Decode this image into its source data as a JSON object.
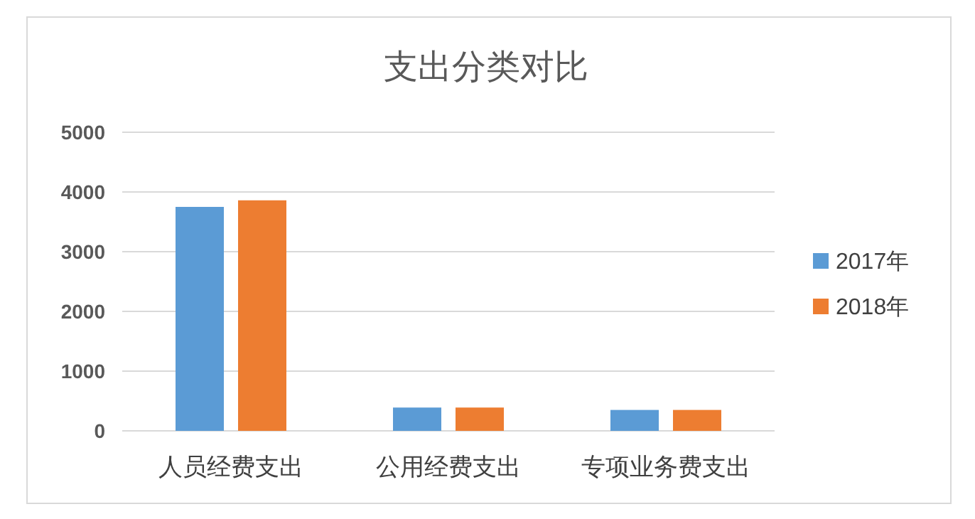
{
  "chart_data": {
    "type": "bar",
    "title": "支出分类对比",
    "categories": [
      "人员经费支出",
      "公用经费支出",
      "专项业务费支出"
    ],
    "series": [
      {
        "name": "2017年",
        "color": "#5b9bd5",
        "values": [
          3750,
          390,
          350
        ]
      },
      {
        "name": "2018年",
        "color": "#ed7d31",
        "values": [
          3860,
          390,
          350
        ]
      }
    ],
    "ylim": [
      0,
      5000
    ],
    "yticks": [
      0,
      1000,
      2000,
      3000,
      4000,
      5000
    ],
    "grid": "y",
    "legend": "right"
  }
}
